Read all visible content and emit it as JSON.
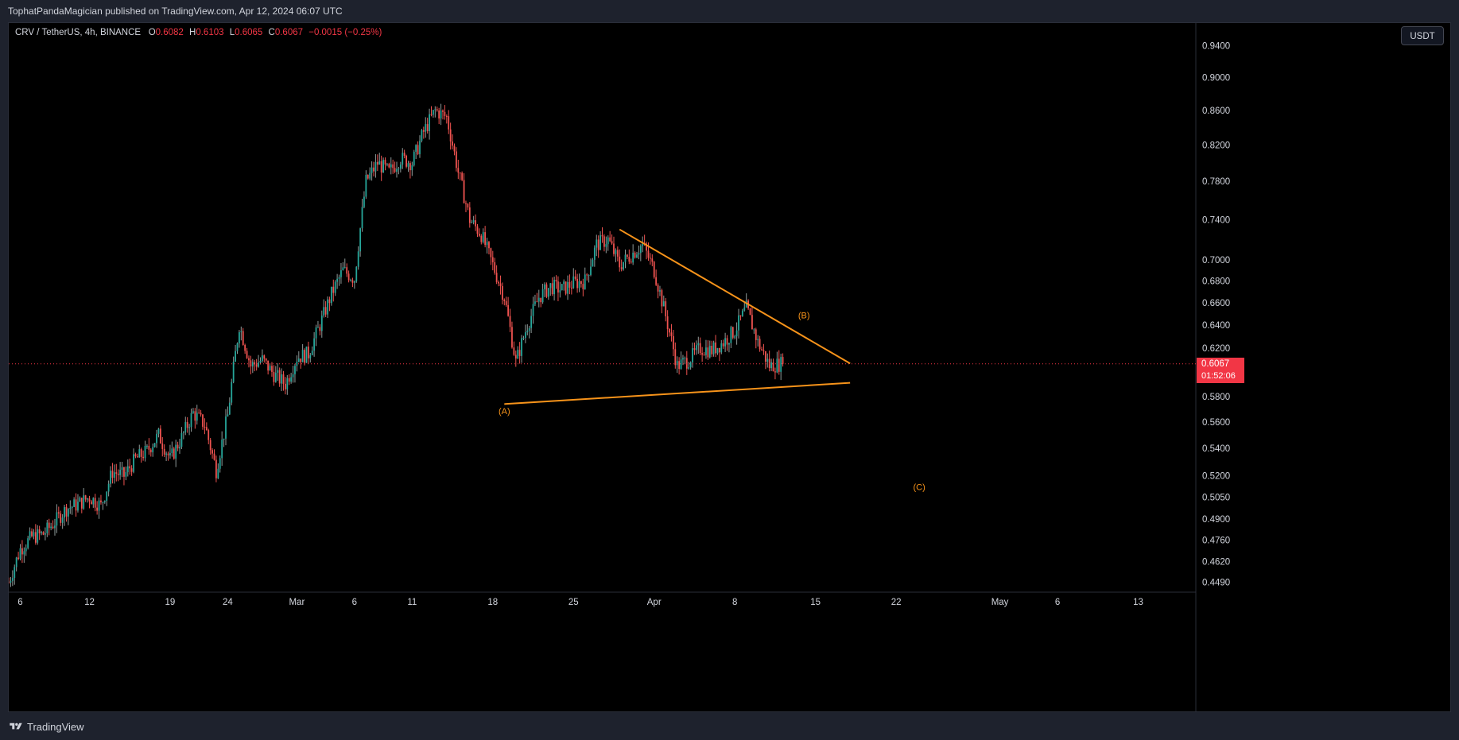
{
  "header": {
    "publisher_line": "TophatPandaMagician published on TradingView.com, Apr 12, 2024 06:07 UTC"
  },
  "legend": {
    "symbol": "CRV / TetherUS, 4h, BINANCE",
    "open_label": "O",
    "open": "0.6082",
    "high_label": "H",
    "high": "0.6103",
    "low_label": "L",
    "low": "0.6065",
    "close_label": "C",
    "close": "0.6067",
    "change": "−0.0015 (−0.25%)"
  },
  "currency_button": "USDT",
  "price_tag": {
    "price": "0.6067",
    "countdown": "01:52:06"
  },
  "footer": {
    "brand": "TradingView"
  },
  "colors": {
    "up": "#26a69a",
    "down": "#ef5350",
    "wick_up": "#8f9a99",
    "trendline": "#f7931a",
    "price_line": "#f23645",
    "background": "#000000"
  },
  "chart_data": {
    "type": "candlestick",
    "title": "",
    "xlabel": "",
    "ylabel": "",
    "y_scale": "log",
    "ylim": [
      0.443,
      0.97
    ],
    "xlim": [
      "2024-02-05",
      "2024-05-18"
    ],
    "y_ticks": [
      "0.9400",
      "0.9000",
      "0.8600",
      "0.8200",
      "0.7800",
      "0.7400",
      "0.7000",
      "0.6800",
      "0.6600",
      "0.6400",
      "0.6200",
      "0.6067",
      "0.5800",
      "0.5600",
      "0.5400",
      "0.5200",
      "0.5050",
      "0.4900",
      "0.4760",
      "0.4620",
      "0.4490"
    ],
    "x_ticks": [
      {
        "date": "2024-02-06",
        "label": "6"
      },
      {
        "date": "2024-02-12",
        "label": "12"
      },
      {
        "date": "2024-02-19",
        "label": "19"
      },
      {
        "date": "2024-02-24",
        "label": "24"
      },
      {
        "date": "2024-03-01",
        "label": "Mar"
      },
      {
        "date": "2024-03-06",
        "label": "6"
      },
      {
        "date": "2024-03-11",
        "label": "11"
      },
      {
        "date": "2024-03-18",
        "label": "18"
      },
      {
        "date": "2024-03-25",
        "label": "25"
      },
      {
        "date": "2024-04-01",
        "label": "Apr"
      },
      {
        "date": "2024-04-08",
        "label": "8"
      },
      {
        "date": "2024-04-15",
        "label": "15"
      },
      {
        "date": "2024-04-22",
        "label": "22"
      },
      {
        "date": "2024-05-01",
        "label": "May"
      },
      {
        "date": "2024-05-06",
        "label": "6"
      },
      {
        "date": "2024-05-13",
        "label": "13"
      }
    ],
    "last_price": 0.6067,
    "close_path": [
      [
        "2024-02-05",
        0.449
      ],
      [
        "2024-02-06",
        0.47
      ],
      [
        "2024-02-07",
        0.478
      ],
      [
        "2024-02-08",
        0.48
      ],
      [
        "2024-02-09",
        0.488
      ],
      [
        "2024-02-10",
        0.497
      ],
      [
        "2024-02-11",
        0.5
      ],
      [
        "2024-02-12",
        0.505
      ],
      [
        "2024-02-13",
        0.499
      ],
      [
        "2024-02-14",
        0.523
      ],
      [
        "2024-02-15",
        0.52
      ],
      [
        "2024-02-16",
        0.532
      ],
      [
        "2024-02-17",
        0.538
      ],
      [
        "2024-02-18",
        0.55
      ],
      [
        "2024-02-19",
        0.532
      ],
      [
        "2024-02-20",
        0.548
      ],
      [
        "2024-02-21",
        0.567
      ],
      [
        "2024-02-22",
        0.558
      ],
      [
        "2024-02-23",
        0.524
      ],
      [
        "2024-02-24",
        0.565
      ],
      [
        "2024-02-25",
        0.64
      ],
      [
        "2024-02-26",
        0.605
      ],
      [
        "2024-02-27",
        0.61
      ],
      [
        "2024-02-28",
        0.598
      ],
      [
        "2024-02-29",
        0.59
      ],
      [
        "2024-03-01",
        0.612
      ],
      [
        "2024-03-02",
        0.615
      ],
      [
        "2024-03-03",
        0.64
      ],
      [
        "2024-03-04",
        0.668
      ],
      [
        "2024-03-05",
        0.69
      ],
      [
        "2024-03-06",
        0.682
      ],
      [
        "2024-03-07",
        0.78
      ],
      [
        "2024-03-08",
        0.8
      ],
      [
        "2024-03-09",
        0.79
      ],
      [
        "2024-03-10",
        0.805
      ],
      [
        "2024-03-11",
        0.8
      ],
      [
        "2024-03-12",
        0.835
      ],
      [
        "2024-03-13",
        0.86
      ],
      [
        "2024-03-14",
        0.852
      ],
      [
        "2024-03-15",
        0.79
      ],
      [
        "2024-03-16",
        0.74
      ],
      [
        "2024-03-17",
        0.725
      ],
      [
        "2024-03-18",
        0.695
      ],
      [
        "2024-03-19",
        0.665
      ],
      [
        "2024-03-20",
        0.608
      ],
      [
        "2024-03-21",
        0.64
      ],
      [
        "2024-03-22",
        0.665
      ],
      [
        "2024-03-23",
        0.675
      ],
      [
        "2024-03-24",
        0.672
      ],
      [
        "2024-03-25",
        0.678
      ],
      [
        "2024-03-26",
        0.68
      ],
      [
        "2024-03-27",
        0.715
      ],
      [
        "2024-03-28",
        0.72
      ],
      [
        "2024-03-29",
        0.695
      ],
      [
        "2024-03-30",
        0.705
      ],
      [
        "2024-03-31",
        0.715
      ],
      [
        "2024-04-01",
        0.69
      ],
      [
        "2024-04-02",
        0.648
      ],
      [
        "2024-04-03",
        0.605
      ],
      [
        "2024-04-04",
        0.61
      ],
      [
        "2024-04-05",
        0.62
      ],
      [
        "2024-04-06",
        0.618
      ],
      [
        "2024-04-07",
        0.625
      ],
      [
        "2024-04-08",
        0.635
      ],
      [
        "2024-04-09",
        0.655
      ],
      [
        "2024-04-10",
        0.625
      ],
      [
        "2024-04-11",
        0.605
      ],
      [
        "2024-04-12",
        0.6067
      ]
    ],
    "trendlines": [
      {
        "name": "upper",
        "from": [
          "2024-03-29",
          0.73
        ],
        "to": [
          "2024-04-18",
          0.607
        ]
      },
      {
        "name": "lower",
        "from": [
          "2024-03-19",
          0.574
        ],
        "to": [
          "2024-04-18",
          0.591
        ]
      }
    ],
    "annotations": [
      {
        "text": "(A)",
        "date": "2024-03-19",
        "price": 0.566
      },
      {
        "text": "(B)",
        "date": "2024-04-14",
        "price": 0.646
      },
      {
        "text": "(C)",
        "date": "2024-04-24",
        "price": 0.51
      }
    ]
  }
}
